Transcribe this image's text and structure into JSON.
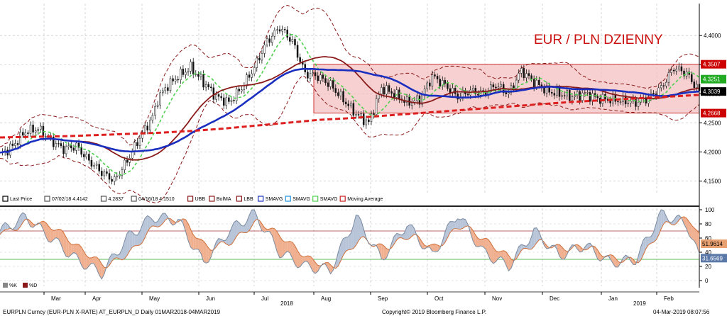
{
  "chart_data": [
    {
      "type": "line",
      "subtype": "candlestick",
      "title": "EUR / PLN DZIENNY",
      "ylim": [
        4.13,
        4.455
      ],
      "y_ticks": [
        "4.4000",
        "4.3500",
        "4.3000",
        "4.2500",
        "4.2000",
        "4.1500"
      ],
      "x_ticks": [
        "Mar",
        "Apr",
        "May",
        "Jun",
        "Jul",
        "Aug",
        "Sep",
        "Oct",
        "Nov",
        "Dec",
        "Jan",
        "Feb"
      ],
      "year_labels": [
        "2018",
        "2019"
      ],
      "grid": true,
      "range_box": {
        "top": 4.3507,
        "bottom": 4.2668,
        "color": "#f4c2c2"
      },
      "price_tags": [
        {
          "label": "4.3507",
          "value": 4.3507,
          "bg": "#cc0000",
          "fg": "#ffffff"
        },
        {
          "label": "4.3251",
          "value": 4.3251,
          "bg": "#22aa22",
          "fg": "#ffffff"
        },
        {
          "label": "4.3039",
          "value": 4.3039,
          "bg": "#000000",
          "fg": "#ffffff"
        },
        {
          "label": "4.2668",
          "value": 4.2668,
          "bg": "#cc0000",
          "fg": "#ffffff"
        }
      ],
      "legend": [
        {
          "label": "Last Price",
          "color": "#000000"
        },
        {
          "label": "07/02/18 4.4142",
          "color": "#555555"
        },
        {
          "label": "4.2837",
          "color": "#555555"
        },
        {
          "label": "04/16/18 4.1510",
          "color": "#555555"
        },
        {
          "label": "UBB",
          "color": "#8b1a1a"
        },
        {
          "label": "BolMA",
          "color": "#8b1a1a"
        },
        {
          "label": "LBB",
          "color": "#8b1a1a"
        },
        {
          "label": "SMAVG",
          "color": "#1a2fbf"
        },
        {
          "label": "SMAVG",
          "color": "#1e8fdc"
        },
        {
          "label": "SMAVG",
          "color": "#4fd04f"
        },
        {
          "label": "Moving Average",
          "color": "#cc1f1f"
        }
      ],
      "series": [
        {
          "name": "Last Price",
          "x": [
            0,
            5,
            10,
            15,
            20,
            25,
            30,
            35,
            40,
            45,
            50,
            55,
            60,
            62,
            65,
            70,
            75,
            80,
            85,
            90,
            95,
            100,
            105,
            110,
            115,
            120,
            125,
            130,
            135,
            140,
            145,
            150,
            155,
            160,
            165,
            170,
            175,
            180,
            185,
            190,
            195,
            200,
            205,
            210,
            215,
            220,
            225,
            230,
            235,
            240,
            245,
            250,
            255,
            260,
            265,
            270,
            275
          ],
          "values": [
            4.195,
            4.21,
            4.235,
            4.24,
            4.22,
            4.205,
            4.21,
            4.185,
            4.165,
            4.151,
            4.185,
            4.225,
            4.26,
            4.29,
            4.31,
            4.33,
            4.345,
            4.32,
            4.295,
            4.285,
            4.31,
            4.345,
            4.39,
            4.414,
            4.39,
            4.335,
            4.33,
            4.315,
            4.29,
            4.265,
            4.25,
            4.31,
            4.3,
            4.285,
            4.29,
            4.33,
            4.315,
            4.295,
            4.305,
            4.3,
            4.315,
            4.3,
            4.34,
            4.32,
            4.305,
            4.3,
            4.295,
            4.3,
            4.292,
            4.29,
            4.288,
            4.285,
            4.293,
            4.31,
            4.345,
            4.335,
            4.304
          ]
        },
        {
          "name": "SMAVG 200",
          "values": [
            4.225,
            4.226,
            4.227,
            4.229,
            4.231,
            4.233,
            4.236,
            4.24,
            4.245,
            4.25,
            4.255,
            4.258,
            4.262,
            4.266,
            4.27,
            4.274,
            4.278,
            4.282,
            4.286,
            4.289,
            4.292,
            4.295,
            4.298
          ]
        },
        {
          "name": "SMAVG 50",
          "values": [
            4.17,
            4.172,
            4.18,
            4.2,
            4.225,
            4.25,
            4.285,
            4.305,
            4.31,
            4.31,
            4.305,
            4.303,
            4.3,
            4.3,
            4.298,
            4.297,
            4.295,
            4.295,
            4.296,
            4.3
          ]
        }
      ]
    },
    {
      "type": "line",
      "title": "",
      "ylim": [
        -8,
        102
      ],
      "y_ticks": [
        "100",
        "80",
        "60",
        "40",
        "20",
        "0"
      ],
      "levels": [
        70,
        30
      ],
      "legend": [
        {
          "label": "%K",
          "color": "#888888"
        },
        {
          "label": "%D",
          "color": "#8b1a1a"
        }
      ],
      "price_tags": [
        {
          "label": "51.9614",
          "value": 51.96,
          "bg": "#e8a070",
          "fg": "#000000"
        },
        {
          "label": "31.6569",
          "value": 31.66,
          "bg": "#5a78a8",
          "fg": "#ffffff"
        }
      ],
      "series": [
        {
          "name": "%K",
          "x": [
            0,
            10,
            20,
            30,
            40,
            50,
            60,
            70,
            80,
            90,
            100,
            110,
            120,
            130,
            140,
            150,
            160,
            170,
            180,
            190,
            200,
            210,
            220,
            230,
            240,
            250,
            260,
            270,
            275
          ],
          "values": [
            70,
            90,
            60,
            30,
            10,
            60,
            90,
            85,
            25,
            70,
            95,
            40,
            20,
            15,
            90,
            30,
            80,
            35,
            95,
            40,
            20,
            70,
            35,
            50,
            25,
            30,
            95,
            80,
            32
          ]
        },
        {
          "name": "%D",
          "values": [
            65,
            85,
            75,
            45,
            20,
            40,
            80,
            88,
            45,
            55,
            85,
            60,
            30,
            18,
            60,
            45,
            65,
            45,
            80,
            55,
            30,
            55,
            45,
            48,
            30,
            28,
            80,
            88,
            52
          ]
        }
      ]
    }
  ],
  "footer": {
    "left": "EURPLN Curncy (EUR-PLN X-RATE) AT_EURPLN_D  Daily 01MAR2018-04MAR2019",
    "center": "Copyright© 2019 Bloomberg Finance L.P.",
    "right": "04-Mar-2019 08:07:56"
  }
}
